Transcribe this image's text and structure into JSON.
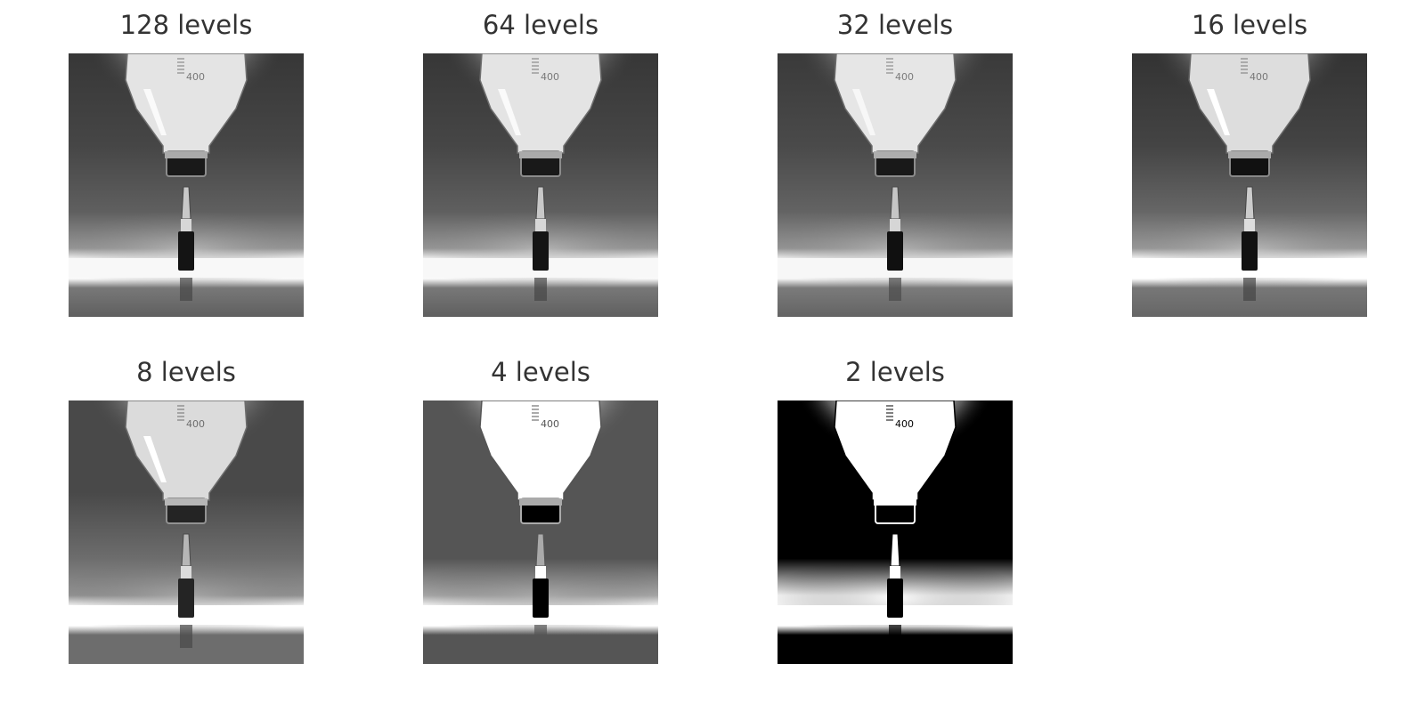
{
  "figure": {
    "panels": [
      {
        "title": "128 levels",
        "levels": 128
      },
      {
        "title": "64 levels",
        "levels": 64
      },
      {
        "title": "32 levels",
        "levels": 32
      },
      {
        "title": "16 levels",
        "levels": 16
      },
      {
        "title": "8 levels",
        "levels": 8
      },
      {
        "title": "4 levels",
        "levels": 4
      },
      {
        "title": "2 levels",
        "levels": 2
      }
    ],
    "image": {
      "subject": "bottle and ampoule",
      "bottle_marking": "400"
    }
  }
}
